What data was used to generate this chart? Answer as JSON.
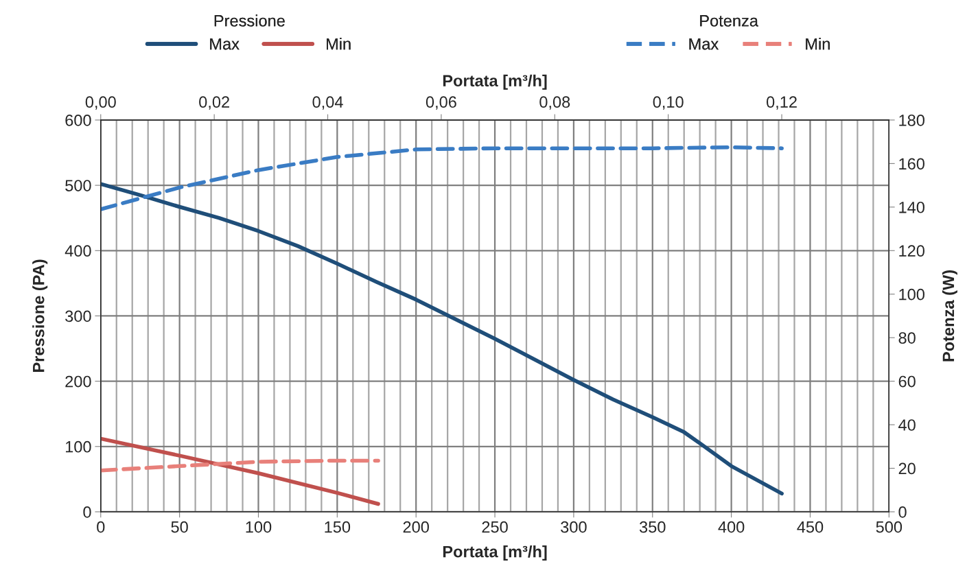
{
  "chart_data": {
    "type": "line",
    "xlabel": "Portata [m³/h]",
    "x2label": "Portata [m³/h]",
    "ylabel": "Pressione (PA)",
    "y2label": "Potenza (W)",
    "legend_title": [
      "Pressione",
      "Potenza"
    ],
    "xlim": [
      0,
      500
    ],
    "xticks": [
      0,
      50,
      100,
      150,
      200,
      250,
      300,
      350,
      400,
      450,
      500
    ],
    "x2lim": [
      0,
      0.1389
    ],
    "x2ticks": [
      {
        "value": 0,
        "label": "0,00"
      },
      {
        "value": 0.02,
        "label": "0,02"
      },
      {
        "value": 0.04,
        "label": "0,04"
      },
      {
        "value": 0.06,
        "label": "0,06"
      },
      {
        "value": 0.08,
        "label": "0,08"
      },
      {
        "value": 0.1,
        "label": "0,10"
      },
      {
        "value": 0.12,
        "label": "0,12"
      }
    ],
    "ylim": [
      0,
      600
    ],
    "yticks": [
      0,
      100,
      200,
      300,
      400,
      500,
      600
    ],
    "y2lim": [
      0,
      180
    ],
    "y2ticks": [
      0,
      20,
      40,
      60,
      80,
      100,
      120,
      140,
      160,
      180
    ],
    "grid": true,
    "legend": "top",
    "series": [
      {
        "name": "Max",
        "axis": "y",
        "line_style": "solid",
        "color": "#1f4e79",
        "x": [
          0,
          25,
          50,
          75,
          100,
          125,
          150,
          175,
          200,
          250,
          300,
          325,
          350,
          370,
          380,
          400,
          432
        ],
        "values": [
          502,
          485,
          467,
          450,
          430,
          407,
          380,
          352,
          325,
          265,
          202,
          172,
          145,
          122,
          105,
          70,
          28
        ]
      },
      {
        "name": "Min",
        "axis": "y",
        "line_style": "solid",
        "color": "#c0504d",
        "x": [
          0,
          50,
          100,
          150,
          176
        ],
        "values": [
          112,
          86,
          59,
          29,
          12
        ]
      },
      {
        "name": "Max",
        "axis": "y2",
        "line_style": "dashed",
        "color": "#3a7cc4",
        "x": [
          0,
          25,
          50,
          100,
          150,
          200,
          250,
          300,
          350,
          400,
          432
        ],
        "values": [
          139,
          144,
          149,
          157,
          163,
          166.5,
          167,
          167,
          167,
          167.5,
          167
        ]
      },
      {
        "name": "Min",
        "axis": "y2",
        "line_style": "dashed",
        "color": "#e8807a",
        "x": [
          0,
          50,
          100,
          150,
          176
        ],
        "values": [
          19,
          21,
          23,
          23.5,
          23.5
        ]
      }
    ]
  }
}
